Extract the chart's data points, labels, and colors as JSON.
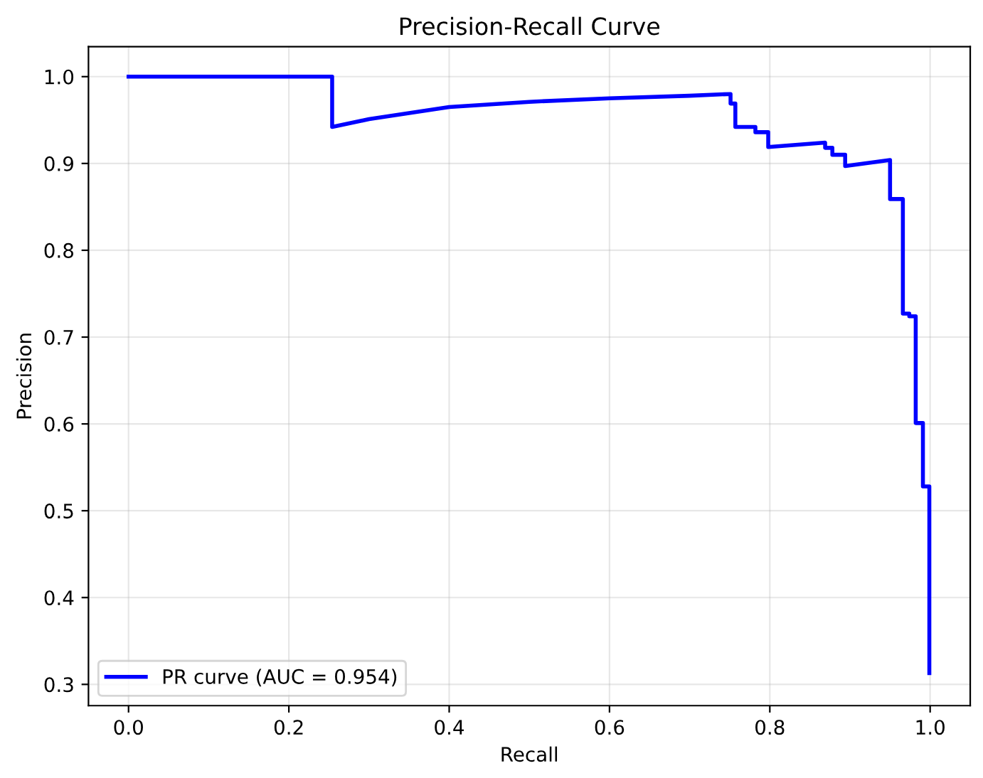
{
  "chart_data": {
    "type": "line",
    "title": "Precision-Recall Curve",
    "xlabel": "Recall",
    "ylabel": "Precision",
    "xlim": [
      -0.05,
      1.05
    ],
    "ylim": [
      0.2755,
      1.0345
    ],
    "xticks": [
      {
        "value": 0,
        "label": "0.0"
      },
      0.2,
      0.4,
      0.6,
      0.8,
      {
        "value": 1,
        "label": "1.0"
      }
    ],
    "yticks": [
      0.3,
      0.4,
      0.5,
      0.6,
      0.7,
      0.8,
      0.9,
      {
        "value": 1,
        "label": "1.0"
      }
    ],
    "grid": true,
    "legend": "lower left",
    "line_style": "solid",
    "marker": "none",
    "series": [
      {
        "name": "PR curve (AUC = 0.954)",
        "color": "#0000ff",
        "x": [
          0,
          0.254,
          0.254,
          0.3,
          0.4,
          0.5,
          0.6,
          0.7,
          0.751,
          0.751,
          0.757,
          0.757,
          0.782,
          0.782,
          0.798,
          0.798,
          0.869,
          0.869,
          0.878,
          0.878,
          0.894,
          0.894,
          0.95,
          0.95,
          0.966,
          0.966,
          0.974,
          0.974,
          0.982,
          0.982,
          0.991,
          0.991,
          0.999,
          0.999
        ],
        "values": [
          1.0,
          1.0,
          0.942,
          0.951,
          0.965,
          0.971,
          0.975,
          0.978,
          0.98,
          0.969,
          0.969,
          0.942,
          0.942,
          0.936,
          0.936,
          0.919,
          0.924,
          0.918,
          0.918,
          0.91,
          0.91,
          0.897,
          0.904,
          0.859,
          0.859,
          0.727,
          0.727,
          0.724,
          0.724,
          0.601,
          0.601,
          0.528,
          0.528,
          0.313
        ]
      }
    ]
  }
}
